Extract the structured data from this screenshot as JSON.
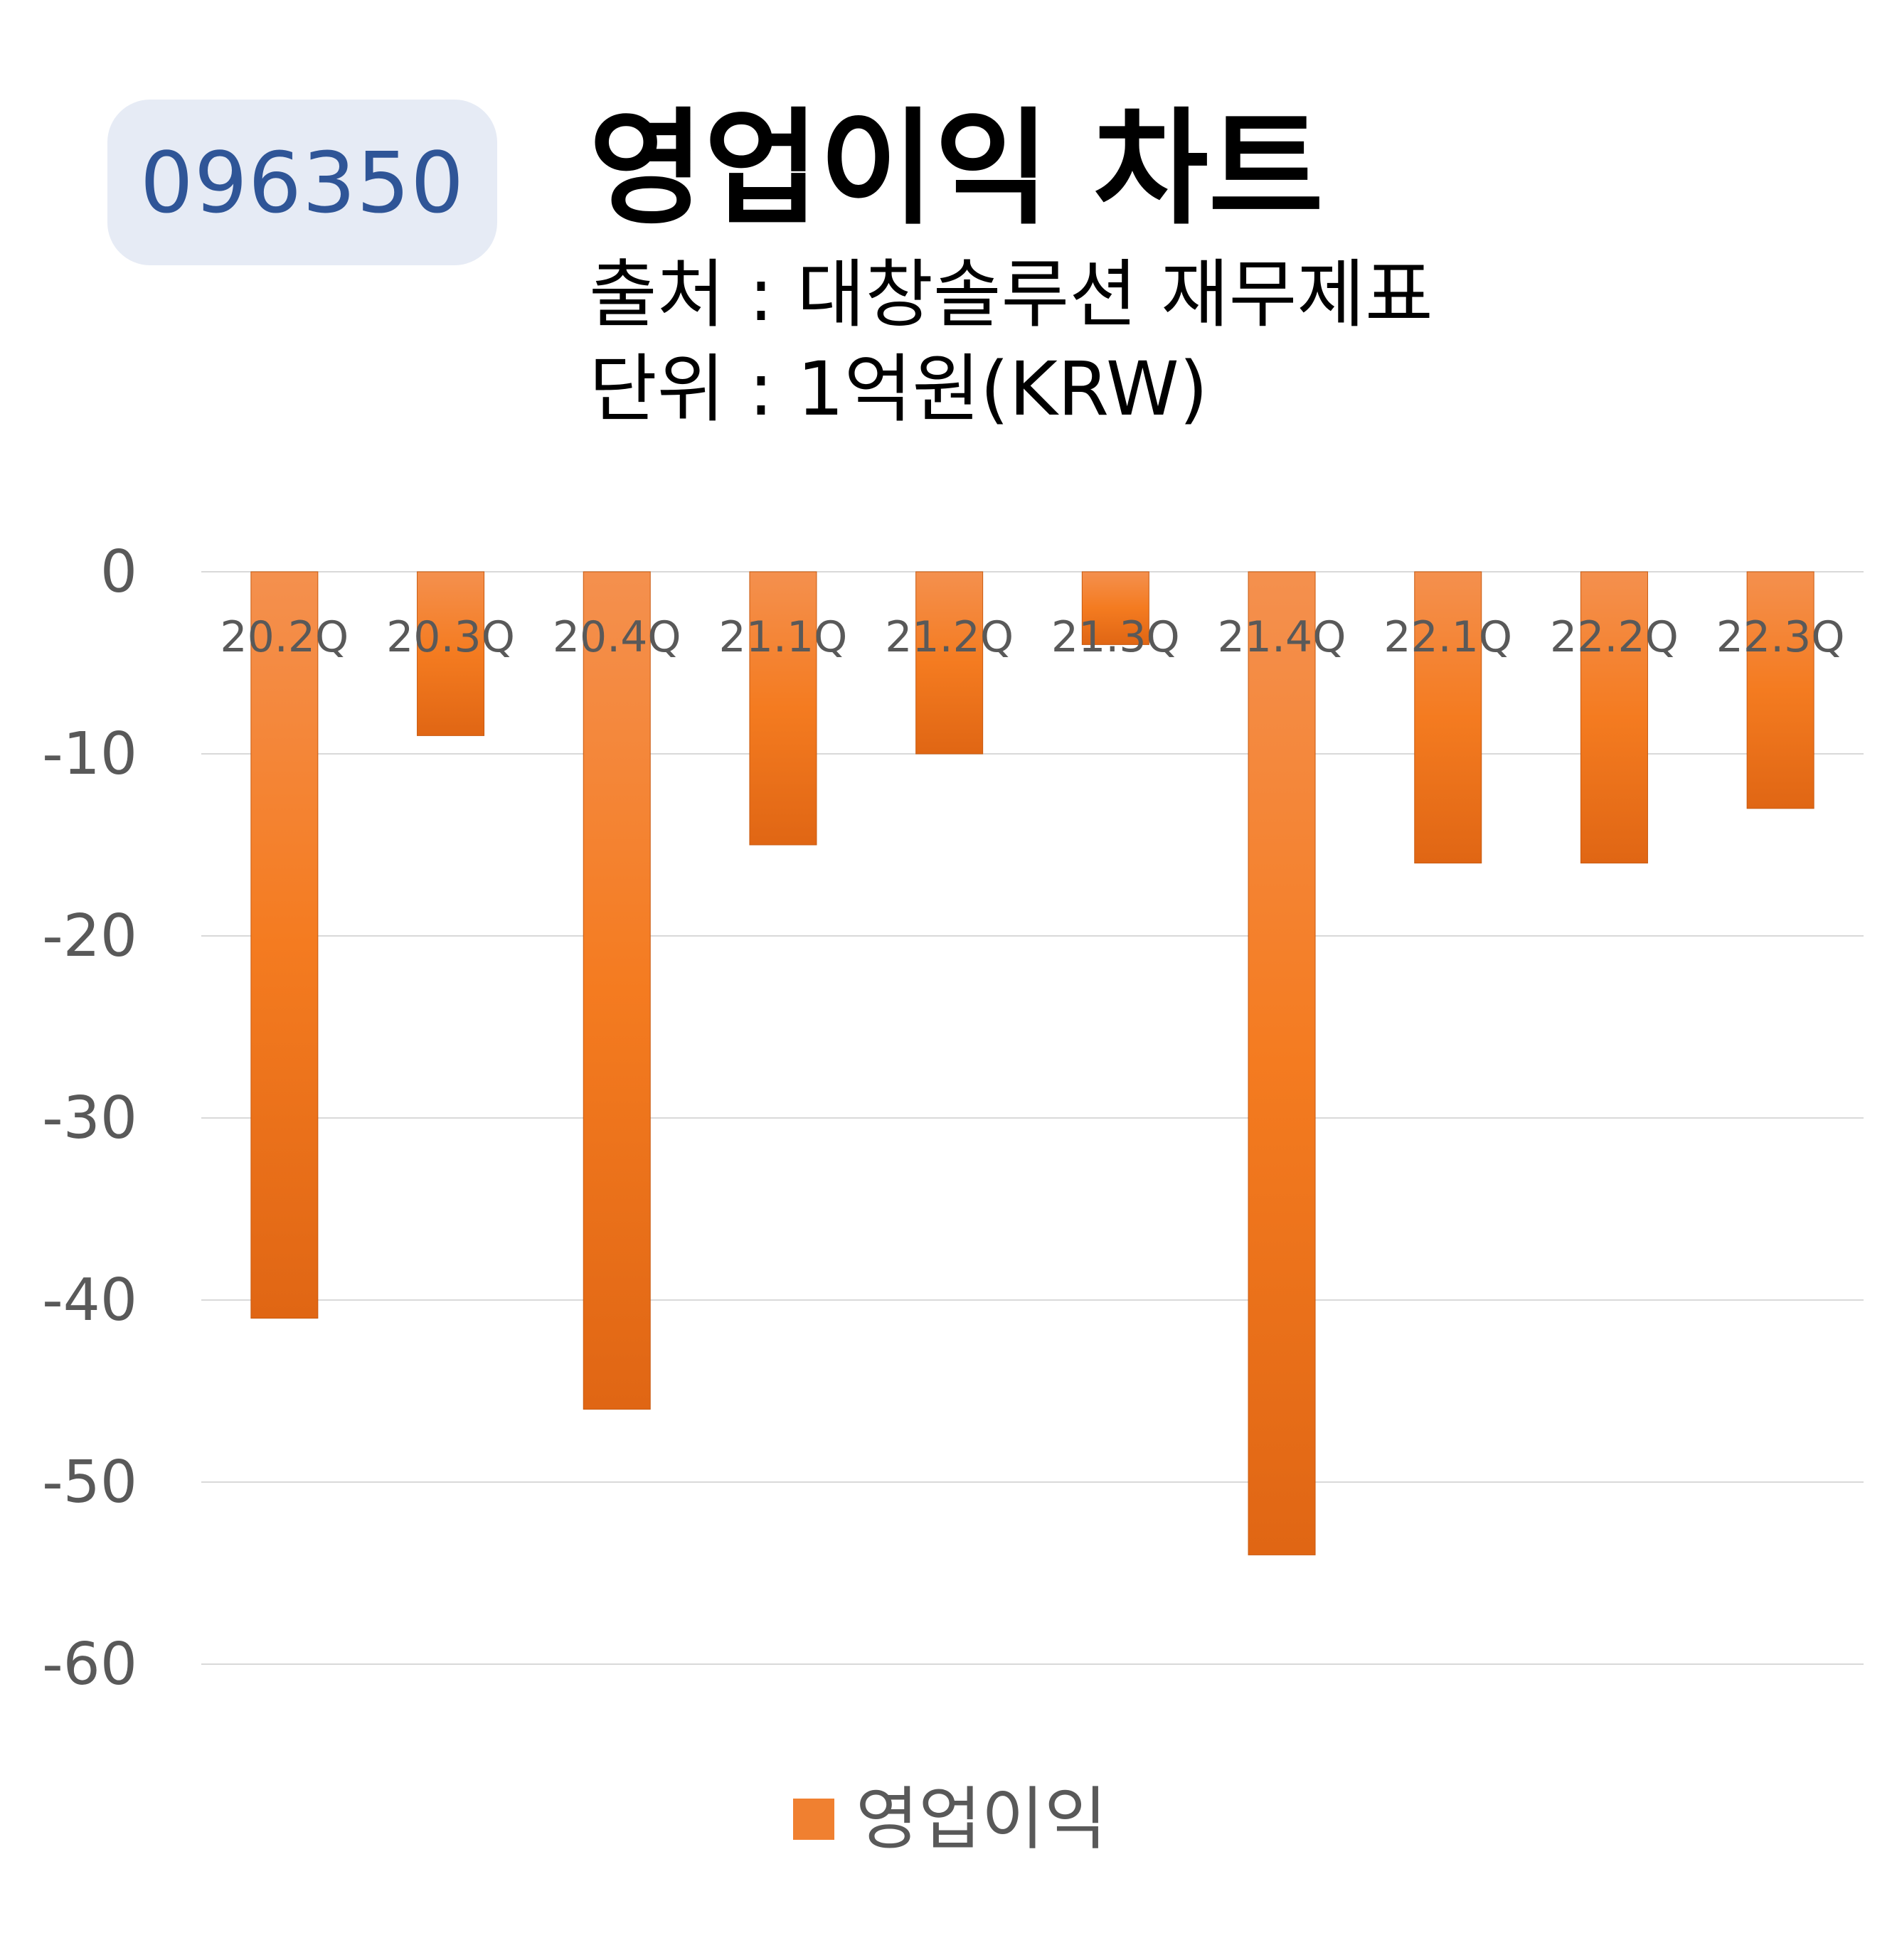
{
  "header": {
    "ticker": "096350",
    "title": "영업이익 차트",
    "source": "출처 : 대창솔루션 재무제표",
    "unit": "단위 : 1억원(KRW)"
  },
  "chart_data": {
    "type": "bar",
    "categories": [
      "20.2Q",
      "20.3Q",
      "20.4Q",
      "21.1Q",
      "21.2Q",
      "21.3Q",
      "21.4Q",
      "22.1Q",
      "22.2Q",
      "22.3Q"
    ],
    "series": [
      {
        "name": "영업이익",
        "values": [
          -41,
          -9,
          -46,
          -15,
          -10,
          -4,
          -54,
          -16,
          -16,
          -13
        ]
      }
    ],
    "y_ticks": [
      0,
      -10,
      -20,
      -30,
      -40,
      -50,
      -60
    ],
    "ylim": [
      -60,
      0
    ],
    "grid": true,
    "legend_position": "bottom-center",
    "colors": {
      "bar_top": "#f4904e",
      "bar_mid": "#f47b20",
      "bar_bottom": "#e06614",
      "grid": "#d9d9d9",
      "tick": "#595959"
    }
  }
}
